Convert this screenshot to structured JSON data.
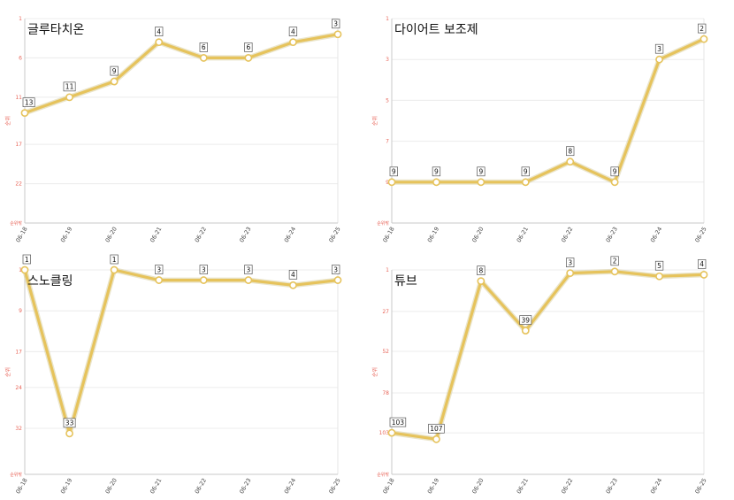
{
  "chart_data": [
    {
      "type": "line",
      "title": "글루타치온",
      "ylabel": "순위",
      "y_reversed": true,
      "ylim": [
        1,
        27
      ],
      "yticks": [
        1,
        6,
        11,
        17,
        22
      ],
      "ytick_bottom_label": "순위밖",
      "categories": [
        "06-18",
        "06-19",
        "06-20",
        "06-21",
        "06-22",
        "06-23",
        "06-24",
        "06-25"
      ],
      "values": [
        13,
        11,
        9,
        4,
        6,
        6,
        4,
        3
      ],
      "labels": [
        "13",
        "11",
        "9",
        "4",
        "6",
        "6",
        "4",
        "3"
      ],
      "grid": true,
      "line_color": "#e6c35c",
      "axis_label_color": "#e8665a"
    },
    {
      "type": "line",
      "title": "다이어트 보조제",
      "ylabel": "순위",
      "y_reversed": true,
      "ylim": [
        1,
        11
      ],
      "yticks": [
        1,
        3,
        5,
        7,
        9
      ],
      "ytick_bottom_label": "순위밖",
      "categories": [
        "06-18",
        "06-19",
        "06-20",
        "06-21",
        "06-22",
        "06-23",
        "06-24",
        "06-25"
      ],
      "values": [
        9,
        9,
        9,
        9,
        8,
        9,
        3,
        2
      ],
      "labels": [
        "9",
        "9",
        "9",
        "9",
        "8",
        "9",
        "3",
        "2"
      ],
      "grid": true,
      "line_color": "#e6c35c",
      "axis_label_color": "#e8665a"
    },
    {
      "type": "line",
      "title": "스노클링",
      "ylabel": "순위",
      "y_reversed": true,
      "ylim": [
        1,
        41
      ],
      "yticks": [
        1,
        9,
        17,
        24,
        32
      ],
      "ytick_bottom_label": "순위밖",
      "categories": [
        "06-18",
        "06-19",
        "06-20",
        "06-21",
        "06-22",
        "06-23",
        "06-24",
        "06-25"
      ],
      "values": [
        1,
        33,
        1,
        3,
        3,
        3,
        4,
        3
      ],
      "labels": [
        "1",
        "33",
        "1",
        "3",
        "3",
        "3",
        "4",
        "3"
      ],
      "grid": true,
      "line_color": "#e6c35c",
      "axis_label_color": "#e8665a"
    },
    {
      "type": "line",
      "title": "튜브",
      "ylabel": "순위",
      "y_reversed": true,
      "ylim": [
        1,
        129
      ],
      "yticks": [
        1,
        27,
        52,
        78,
        103
      ],
      "ytick_bottom_label": "순위밖",
      "categories": [
        "06-18",
        "06-19",
        "06-20",
        "06-21",
        "06-22",
        "06-23",
        "06-24",
        "06-25"
      ],
      "values": [
        103,
        107,
        8,
        39,
        3,
        2,
        5,
        4
      ],
      "labels": [
        "103",
        "107",
        "8",
        "39",
        "3",
        "2",
        "5",
        "4"
      ],
      "grid": true,
      "line_color": "#e6c35c",
      "axis_label_color": "#e8665a"
    }
  ]
}
